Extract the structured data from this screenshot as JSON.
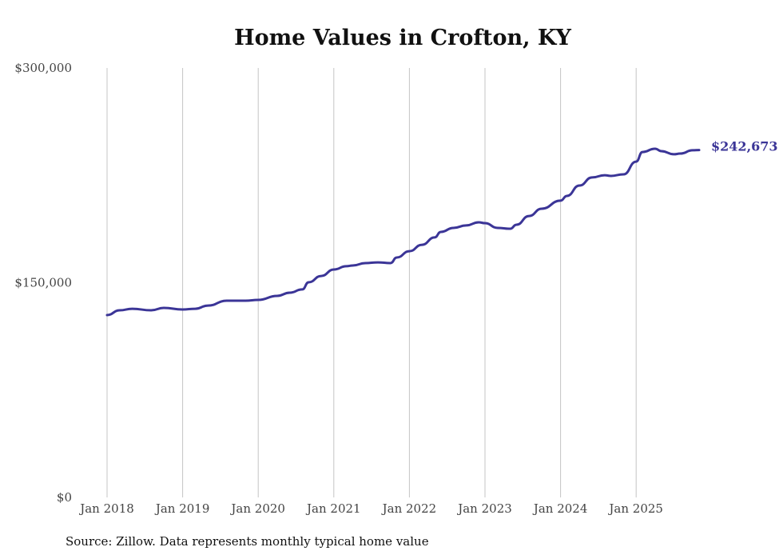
{
  "chart_data": {
    "type": "line",
    "title": "Home Values in Crofton, KY",
    "xlabel": "",
    "ylabel": "",
    "ylim": [
      0,
      300000
    ],
    "yticks": [
      0,
      150000,
      300000
    ],
    "ytick_labels": [
      "$0",
      "$150,000",
      "$300,000"
    ],
    "xticks": [
      "2018-01",
      "2019-01",
      "2020-01",
      "2021-01",
      "2022-01",
      "2023-01",
      "2024-01",
      "2025-01"
    ],
    "xtick_labels": [
      "Jan 2018",
      "Jan 2019",
      "Jan 2020",
      "Jan 2021",
      "Jan 2022",
      "Jan 2023",
      "Jan 2024",
      "Jan 2025"
    ],
    "grid": "vertical",
    "line_color": "#3b3597",
    "series": [
      {
        "name": "Typical home value",
        "points": [
          [
            "2018-01",
            127400
          ],
          [
            "2018-03",
            130700
          ],
          [
            "2018-05",
            131800
          ],
          [
            "2018-08",
            130700
          ],
          [
            "2018-10",
            132400
          ],
          [
            "2019-01",
            131300
          ],
          [
            "2019-03",
            131800
          ],
          [
            "2019-05",
            134000
          ],
          [
            "2019-08",
            137400
          ],
          [
            "2019-11",
            137400
          ],
          [
            "2020-01",
            138000
          ],
          [
            "2020-04",
            140800
          ],
          [
            "2020-06",
            143000
          ],
          [
            "2020-08",
            145300
          ],
          [
            "2020-09",
            150300
          ],
          [
            "2020-11",
            154700
          ],
          [
            "2021-01",
            159200
          ],
          [
            "2021-03",
            161500
          ],
          [
            "2021-04",
            162000
          ],
          [
            "2021-06",
            163700
          ],
          [
            "2021-08",
            164200
          ],
          [
            "2021-10",
            163700
          ],
          [
            "2021-11",
            167600
          ],
          [
            "2022-01",
            172000
          ],
          [
            "2022-03",
            176500
          ],
          [
            "2022-05",
            181600
          ],
          [
            "2022-06",
            185500
          ],
          [
            "2022-08",
            188300
          ],
          [
            "2022-10",
            190000
          ],
          [
            "2022-12",
            192200
          ],
          [
            "2023-01",
            191600
          ],
          [
            "2023-03",
            188300
          ],
          [
            "2023-05",
            187700
          ],
          [
            "2023-06",
            190500
          ],
          [
            "2023-08",
            196600
          ],
          [
            "2023-10",
            201700
          ],
          [
            "2024-01",
            207300
          ],
          [
            "2024-02",
            210600
          ],
          [
            "2024-04",
            217900
          ],
          [
            "2024-06",
            223500
          ],
          [
            "2024-08",
            225100
          ],
          [
            "2024-09",
            224600
          ],
          [
            "2024-11",
            225700
          ],
          [
            "2025-01",
            234600
          ],
          [
            "2025-02",
            241300
          ],
          [
            "2025-04",
            243600
          ],
          [
            "2025-05",
            241900
          ],
          [
            "2025-07",
            239700
          ],
          [
            "2025-08",
            240200
          ],
          [
            "2025-10",
            242500
          ],
          [
            "2025-11",
            242673
          ]
        ]
      }
    ],
    "end_label": "$242,673",
    "source": "Source: Zillow. Data represents monthly typical home value"
  }
}
